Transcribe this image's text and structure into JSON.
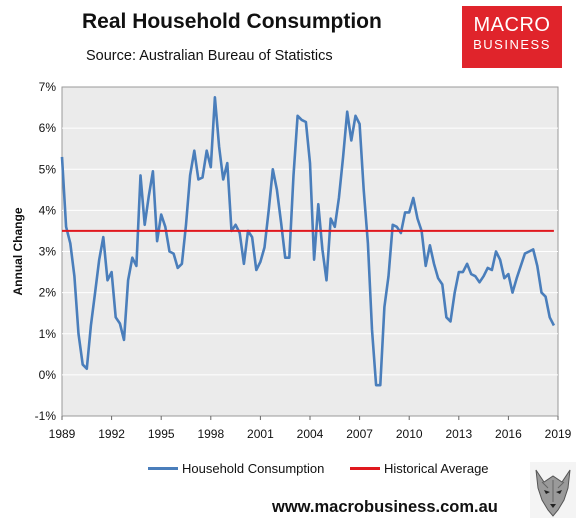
{
  "header": {
    "title": "Real Household Consumption",
    "subtitle": "Source: Australian Bureau of Statistics"
  },
  "logo": {
    "line1": "MACRO",
    "line2": "BUSINESS",
    "color": "#e0242b"
  },
  "footer": {
    "url": "www.macrobusiness.com.au",
    "wolf_icon": "wolf-icon"
  },
  "chart_data": {
    "type": "line",
    "ylabel": "Annual Change",
    "xlabel": "",
    "ylim": [
      -1,
      7
    ],
    "y_ticks": [
      "-1%",
      "0%",
      "1%",
      "2%",
      "3%",
      "4%",
      "5%",
      "6%",
      "7%"
    ],
    "x_ticks": [
      "1989",
      "1992",
      "1995",
      "1998",
      "2001",
      "2004",
      "2007",
      "2010",
      "2013",
      "2016",
      "2019"
    ],
    "xlim": [
      1989,
      2019
    ],
    "grid": true,
    "legend_position": "bottom",
    "series": [
      {
        "name": "Household Consumption",
        "color": "#4a7ebb",
        "x": [
          1989.0,
          1989.25,
          1989.5,
          1989.75,
          1990.0,
          1990.25,
          1990.5,
          1990.75,
          1991.0,
          1991.25,
          1991.5,
          1991.75,
          1992.0,
          1992.25,
          1992.5,
          1992.75,
          1993.0,
          1993.25,
          1993.5,
          1993.75,
          1994.0,
          1994.25,
          1994.5,
          1994.75,
          1995.0,
          1995.25,
          1995.5,
          1995.75,
          1996.0,
          1996.25,
          1996.5,
          1996.75,
          1997.0,
          1997.25,
          1997.5,
          1997.75,
          1998.0,
          1998.25,
          1998.5,
          1998.75,
          1999.0,
          1999.25,
          1999.5,
          1999.75,
          2000.0,
          2000.25,
          2000.5,
          2000.75,
          2001.0,
          2001.25,
          2001.5,
          2001.75,
          2002.0,
          2002.25,
          2002.5,
          2002.75,
          2003.0,
          2003.25,
          2003.5,
          2003.75,
          2004.0,
          2004.25,
          2004.5,
          2004.75,
          2005.0,
          2005.25,
          2005.5,
          2005.75,
          2006.0,
          2006.25,
          2006.5,
          2006.75,
          2007.0,
          2007.25,
          2007.5,
          2007.75,
          2008.0,
          2008.25,
          2008.5,
          2008.75,
          2009.0,
          2009.25,
          2009.5,
          2009.75,
          2010.0,
          2010.25,
          2010.5,
          2010.75,
          2011.0,
          2011.25,
          2011.5,
          2011.75,
          2012.0,
          2012.25,
          2012.5,
          2012.75,
          2013.0,
          2013.25,
          2013.5,
          2013.75,
          2014.0,
          2014.25,
          2014.5,
          2014.75,
          2015.0,
          2015.25,
          2015.5,
          2015.75,
          2016.0,
          2016.25,
          2016.5,
          2016.75,
          2017.0,
          2017.25,
          2017.5,
          2017.75,
          2018.0,
          2018.25,
          2018.5,
          2018.75
        ],
        "values": [
          5.3,
          3.6,
          3.2,
          2.4,
          1.0,
          0.25,
          0.15,
          1.2,
          2.0,
          2.8,
          3.35,
          2.3,
          2.5,
          1.4,
          1.25,
          0.85,
          2.3,
          2.85,
          2.65,
          4.85,
          3.65,
          4.35,
          4.95,
          3.25,
          3.9,
          3.6,
          3.0,
          2.95,
          2.6,
          2.7,
          3.65,
          4.85,
          5.45,
          4.75,
          4.8,
          5.45,
          5.05,
          6.75,
          5.55,
          4.75,
          5.15,
          3.5,
          3.65,
          3.45,
          2.7,
          3.5,
          3.35,
          2.55,
          2.75,
          3.1,
          4.0,
          5.0,
          4.5,
          3.7,
          2.85,
          2.85,
          4.85,
          6.3,
          6.2,
          6.15,
          5.15,
          2.8,
          4.15,
          3.05,
          2.3,
          3.8,
          3.6,
          4.3,
          5.3,
          6.4,
          5.7,
          6.3,
          6.1,
          4.5,
          3.2,
          1.1,
          -0.25,
          -0.25,
          1.65,
          2.4,
          3.65,
          3.6,
          3.45,
          3.95,
          3.95,
          4.3,
          3.8,
          3.5,
          2.65,
          3.15,
          2.7,
          2.35,
          2.2,
          1.4,
          1.3,
          2.0,
          2.5,
          2.5,
          2.7,
          2.45,
          2.4,
          2.25,
          2.4,
          2.6,
          2.55,
          3.0,
          2.8,
          2.35,
          2.45,
          2.0,
          2.35,
          2.65,
          2.95,
          3.0,
          3.05,
          2.65,
          2.0,
          1.9,
          1.4,
          1.2
        ]
      },
      {
        "name": "Historical Average",
        "color": "#e0181e",
        "x": [
          1989.0,
          2018.75
        ],
        "values": [
          3.5,
          3.5
        ]
      }
    ]
  }
}
